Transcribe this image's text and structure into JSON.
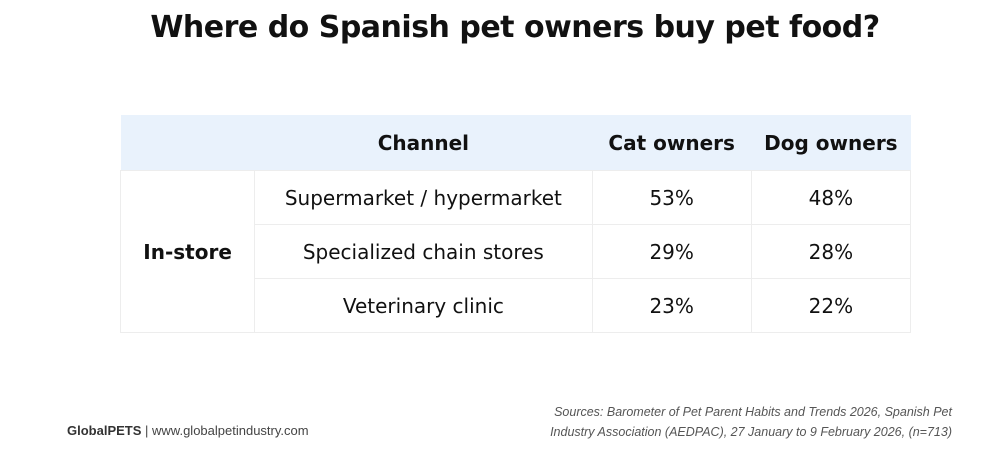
{
  "header": {
    "title": "Where do Spanish pet owners buy pet food?"
  },
  "table": {
    "columns": [
      "Channel",
      "Cat owners",
      "Dog owners"
    ],
    "group": "In-store",
    "rows": [
      [
        "Supermarket / hypermarket",
        "53%",
        "48%"
      ],
      [
        "Specialized chain stores",
        "29%",
        "28%"
      ],
      [
        "Veterinary clinic",
        "23%",
        "22%"
      ]
    ]
  },
  "footer": {
    "brand": "GlobalPETS",
    "website": "| www.globalpetindustry.com",
    "sources": [
      "Sources: Barometer of Pet Parent Habits and Trends 2026, Spanish Pet",
      "Industry Association (AEDPAC), 27 January to 9 February 2026, (n=713)"
    ]
  }
}
